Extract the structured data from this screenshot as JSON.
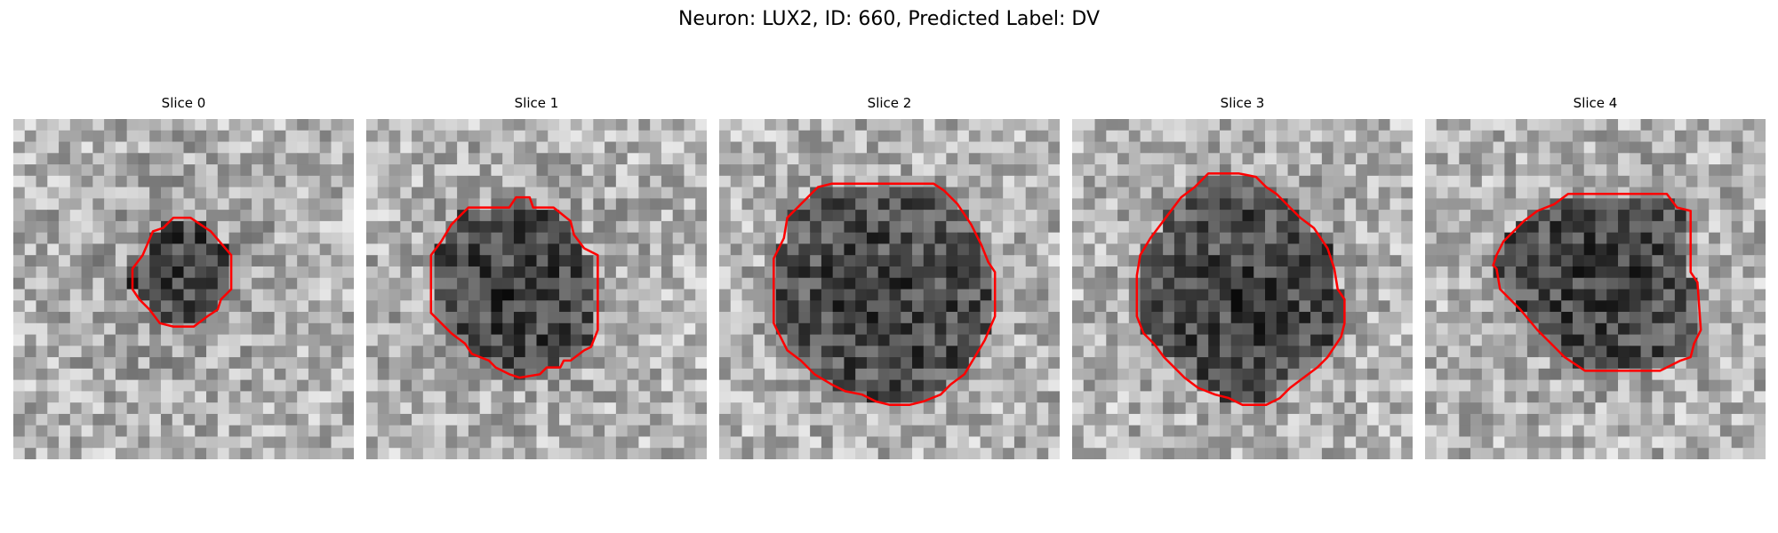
{
  "figure": {
    "title": "Neuron: LUX2, ID: 660, Predicted Label: DV",
    "contour_color": "#ff0000",
    "panels": [
      {
        "title": "Slice 0",
        "contour": [
          [
            0.52,
            0.29
          ],
          [
            0.58,
            0.33
          ],
          [
            0.64,
            0.4
          ],
          [
            0.64,
            0.5
          ],
          [
            0.61,
            0.53
          ],
          [
            0.6,
            0.56
          ],
          [
            0.57,
            0.58
          ],
          [
            0.53,
            0.61
          ],
          [
            0.47,
            0.61
          ],
          [
            0.43,
            0.6
          ],
          [
            0.4,
            0.56
          ],
          [
            0.37,
            0.53
          ],
          [
            0.35,
            0.5
          ],
          [
            0.35,
            0.44
          ],
          [
            0.38,
            0.4
          ],
          [
            0.41,
            0.33
          ],
          [
            0.44,
            0.32
          ],
          [
            0.47,
            0.29
          ]
        ]
      },
      {
        "title": "Slice 1",
        "contour": [
          [
            0.3,
            0.26
          ],
          [
            0.42,
            0.26
          ],
          [
            0.44,
            0.23
          ],
          [
            0.48,
            0.23
          ],
          [
            0.49,
            0.26
          ],
          [
            0.55,
            0.26
          ],
          [
            0.6,
            0.3
          ],
          [
            0.61,
            0.34
          ],
          [
            0.64,
            0.38
          ],
          [
            0.68,
            0.4
          ],
          [
            0.68,
            0.62
          ],
          [
            0.66,
            0.67
          ],
          [
            0.64,
            0.68
          ],
          [
            0.6,
            0.71
          ],
          [
            0.58,
            0.71
          ],
          [
            0.57,
            0.73
          ],
          [
            0.53,
            0.73
          ],
          [
            0.51,
            0.75
          ],
          [
            0.45,
            0.76
          ],
          [
            0.42,
            0.75
          ],
          [
            0.38,
            0.73
          ],
          [
            0.36,
            0.71
          ],
          [
            0.31,
            0.69
          ],
          [
            0.29,
            0.66
          ],
          [
            0.25,
            0.63
          ],
          [
            0.22,
            0.6
          ],
          [
            0.19,
            0.57
          ],
          [
            0.19,
            0.4
          ],
          [
            0.22,
            0.36
          ],
          [
            0.25,
            0.31
          ],
          [
            0.28,
            0.28
          ]
        ]
      },
      {
        "title": "Slice 2",
        "contour": [
          [
            0.33,
            0.19
          ],
          [
            0.63,
            0.19
          ],
          [
            0.66,
            0.21
          ],
          [
            0.7,
            0.25
          ],
          [
            0.74,
            0.31
          ],
          [
            0.77,
            0.37
          ],
          [
            0.79,
            0.42
          ],
          [
            0.81,
            0.45
          ],
          [
            0.81,
            0.58
          ],
          [
            0.78,
            0.65
          ],
          [
            0.75,
            0.7
          ],
          [
            0.72,
            0.75
          ],
          [
            0.68,
            0.78
          ],
          [
            0.65,
            0.81
          ],
          [
            0.6,
            0.83
          ],
          [
            0.56,
            0.84
          ],
          [
            0.5,
            0.84
          ],
          [
            0.46,
            0.83
          ],
          [
            0.42,
            0.81
          ],
          [
            0.37,
            0.8
          ],
          [
            0.33,
            0.78
          ],
          [
            0.28,
            0.75
          ],
          [
            0.24,
            0.71
          ],
          [
            0.2,
            0.68
          ],
          [
            0.18,
            0.64
          ],
          [
            0.16,
            0.6
          ],
          [
            0.16,
            0.41
          ],
          [
            0.19,
            0.35
          ],
          [
            0.2,
            0.29
          ],
          [
            0.23,
            0.26
          ],
          [
            0.27,
            0.22
          ],
          [
            0.29,
            0.2
          ]
        ]
      },
      {
        "title": "Slice 3",
        "contour": [
          [
            0.4,
            0.16
          ],
          [
            0.49,
            0.16
          ],
          [
            0.54,
            0.17
          ],
          [
            0.57,
            0.2
          ],
          [
            0.6,
            0.22
          ],
          [
            0.64,
            0.26
          ],
          [
            0.67,
            0.29
          ],
          [
            0.71,
            0.32
          ],
          [
            0.75,
            0.38
          ],
          [
            0.77,
            0.44
          ],
          [
            0.78,
            0.5
          ],
          [
            0.8,
            0.53
          ],
          [
            0.8,
            0.6
          ],
          [
            0.79,
            0.64
          ],
          [
            0.77,
            0.67
          ],
          [
            0.75,
            0.7
          ],
          [
            0.72,
            0.73
          ],
          [
            0.68,
            0.76
          ],
          [
            0.64,
            0.79
          ],
          [
            0.61,
            0.82
          ],
          [
            0.57,
            0.84
          ],
          [
            0.5,
            0.84
          ],
          [
            0.46,
            0.82
          ],
          [
            0.42,
            0.81
          ],
          [
            0.37,
            0.79
          ],
          [
            0.33,
            0.76
          ],
          [
            0.3,
            0.73
          ],
          [
            0.27,
            0.7
          ],
          [
            0.24,
            0.66
          ],
          [
            0.21,
            0.63
          ],
          [
            0.19,
            0.58
          ],
          [
            0.19,
            0.46
          ],
          [
            0.2,
            0.4
          ],
          [
            0.23,
            0.35
          ],
          [
            0.26,
            0.31
          ],
          [
            0.29,
            0.27
          ],
          [
            0.32,
            0.23
          ],
          [
            0.36,
            0.2
          ]
        ]
      },
      {
        "title": "Slice 4",
        "contour": [
          [
            0.42,
            0.22
          ],
          [
            0.71,
            0.22
          ],
          [
            0.74,
            0.26
          ],
          [
            0.78,
            0.27
          ],
          [
            0.78,
            0.45
          ],
          [
            0.8,
            0.48
          ],
          [
            0.81,
            0.62
          ],
          [
            0.79,
            0.66
          ],
          [
            0.78,
            0.7
          ],
          [
            0.75,
            0.71
          ],
          [
            0.71,
            0.73
          ],
          [
            0.69,
            0.74
          ],
          [
            0.47,
            0.74
          ],
          [
            0.41,
            0.7
          ],
          [
            0.37,
            0.66
          ],
          [
            0.33,
            0.62
          ],
          [
            0.28,
            0.56
          ],
          [
            0.22,
            0.5
          ],
          [
            0.21,
            0.44
          ],
          [
            0.2,
            0.43
          ],
          [
            0.21,
            0.4
          ],
          [
            0.23,
            0.36
          ],
          [
            0.26,
            0.33
          ],
          [
            0.29,
            0.3
          ],
          [
            0.33,
            0.27
          ],
          [
            0.38,
            0.25
          ]
        ]
      }
    ]
  }
}
